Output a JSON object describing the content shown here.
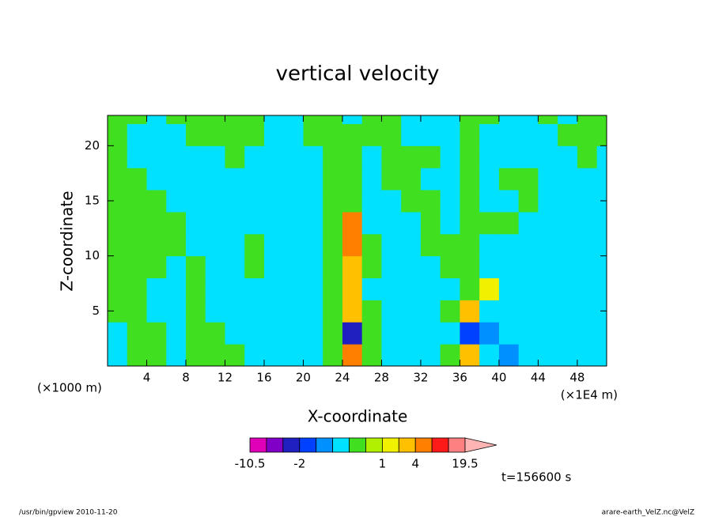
{
  "chart_data": {
    "type": "contour",
    "title": "vertical velocity",
    "x_label": "X-coordinate",
    "y_label": "Z-coordinate",
    "x_unit_left": "(×1000 m)",
    "x_unit_right": "(×1E4 m)",
    "time_label": "t=156600 s",
    "footer_left": "/usr/bin/gpview   2010-11-20",
    "footer_right": "arare-earth_VelZ.nc@VelZ",
    "xlim": [
      0,
      51
    ],
    "ylim": [
      0,
      22.75
    ],
    "xticks": [
      4,
      8,
      12,
      16,
      20,
      24,
      28,
      32,
      36,
      40,
      44,
      48
    ],
    "yticks": [
      5,
      10,
      15,
      20
    ],
    "x": [
      1,
      3,
      5,
      7,
      9,
      11,
      13,
      15,
      17,
      19,
      21,
      23,
      25,
      27,
      29,
      31,
      33,
      35,
      37,
      39,
      41,
      43,
      45,
      47,
      49,
      51
    ],
    "y": [
      1,
      3,
      5,
      7,
      9,
      11,
      13,
      15,
      17,
      19,
      21,
      23
    ],
    "z": [
      [
        -0.3,
        0.3,
        0.3,
        -0.3,
        0.3,
        0.3,
        0.3,
        -0.3,
        -0.3,
        -0.3,
        -0.3,
        0.3,
        4,
        0.3,
        -0.3,
        -0.3,
        -0.3,
        0.3,
        2,
        -0.3,
        -1,
        -0.3,
        -0.3,
        -0.3,
        -0.3,
        -0.3
      ],
      [
        -0.3,
        0.3,
        0.3,
        -0.3,
        0.3,
        0.3,
        -0.3,
        -0.3,
        -0.3,
        -0.3,
        -0.3,
        0.3,
        -2.5,
        0.3,
        -0.3,
        -0.3,
        -0.3,
        -0.3,
        -1.5,
        -1,
        -0.3,
        -0.3,
        -0.3,
        -0.3,
        -0.3,
        -0.3
      ],
      [
        0.3,
        0.3,
        -0.3,
        -0.3,
        0.3,
        -0.3,
        -0.3,
        -0.3,
        -0.3,
        -0.3,
        -0.3,
        0.3,
        3,
        0.3,
        -0.3,
        -0.3,
        -0.3,
        0.3,
        2,
        -0.3,
        -0.3,
        -0.3,
        -0.3,
        -0.3,
        -0.3,
        -0.3
      ],
      [
        0.3,
        0.3,
        -0.3,
        -0.3,
        0.3,
        -0.3,
        -0.3,
        -0.3,
        -0.3,
        -0.3,
        -0.3,
        0.3,
        2,
        -0.3,
        -0.3,
        -0.3,
        -0.3,
        -0.3,
        0.3,
        1,
        -0.3,
        -0.3,
        -0.3,
        -0.3,
        -0.3,
        -0.3
      ],
      [
        0.3,
        0.3,
        0.3,
        -0.3,
        0.3,
        -0.3,
        -0.3,
        0.3,
        -0.3,
        -0.3,
        -0.3,
        0.3,
        3,
        0.3,
        -0.3,
        -0.3,
        -0.3,
        0.3,
        0.3,
        -0.3,
        -0.3,
        -0.3,
        -0.3,
        -0.3,
        -0.3,
        -0.3
      ],
      [
        0.3,
        0.3,
        0.3,
        0.3,
        -0.3,
        -0.3,
        -0.3,
        0.3,
        -0.3,
        -0.3,
        -0.3,
        0.3,
        4,
        0.3,
        -0.3,
        -0.3,
        0.3,
        0.3,
        0.3,
        -0.3,
        -0.3,
        -0.3,
        -0.3,
        -0.3,
        -0.3,
        -0.3
      ],
      [
        0.3,
        0.3,
        0.3,
        0.3,
        -0.3,
        -0.3,
        -0.3,
        -0.3,
        -0.3,
        -0.3,
        -0.3,
        0.3,
        6,
        -0.3,
        -0.3,
        -0.3,
        0.3,
        -0.3,
        0.3,
        0.3,
        0.3,
        -0.3,
        -0.3,
        -0.3,
        -0.3,
        -0.3
      ],
      [
        0.3,
        0.3,
        0.3,
        -0.3,
        -0.3,
        -0.3,
        -0.3,
        -0.3,
        -0.3,
        -0.3,
        -0.3,
        0.3,
        0.3,
        -0.3,
        -0.3,
        0.3,
        0.3,
        -0.3,
        0.3,
        -0.3,
        -0.3,
        0.3,
        -0.3,
        -0.3,
        -0.3,
        -0.3
      ],
      [
        0.3,
        0.3,
        -0.3,
        -0.3,
        -0.3,
        -0.3,
        -0.3,
        -0.3,
        -0.3,
        -0.3,
        -0.3,
        0.3,
        0.3,
        -0.3,
        0.3,
        0.3,
        -0.3,
        -0.3,
        0.3,
        -0.3,
        0.3,
        0.3,
        -0.3,
        -0.3,
        -0.3,
        -0.3
      ],
      [
        0.3,
        -0.3,
        -0.3,
        -0.3,
        -0.3,
        -0.3,
        0.3,
        -0.3,
        -0.3,
        -0.3,
        -0.3,
        0.3,
        0.3,
        -0.3,
        0.3,
        0.3,
        0.3,
        -0.3,
        0.3,
        -0.3,
        -0.3,
        -0.3,
        -0.3,
        -0.3,
        0.3,
        -0.3
      ],
      [
        0.3,
        -0.3,
        -0.3,
        -0.3,
        0.3,
        0.3,
        0.3,
        0.3,
        -0.3,
        -0.3,
        0.3,
        0.3,
        0.3,
        0.3,
        0.3,
        -0.3,
        -0.3,
        -0.3,
        0.3,
        -0.3,
        -0.3,
        -0.3,
        -0.3,
        0.3,
        0.3,
        0.3
      ],
      [
        0.3,
        0.3,
        -0.3,
        0.3,
        0.3,
        0.3,
        0.3,
        0.3,
        -0.3,
        -0.3,
        0.3,
        0.3,
        -0.3,
        0.3,
        0.3,
        -0.3,
        -0.3,
        -0.3,
        0.3,
        0.3,
        -0.3,
        -0.3,
        0.3,
        -0.3,
        0.3,
        0.3
      ]
    ],
    "levels": [
      -10.5,
      -6,
      -3,
      -2,
      -1,
      -0.5,
      0,
      0.5,
      1,
      2,
      4,
      8,
      14,
      19.5
    ],
    "colors": [
      "#e000b8",
      "#8000c8",
      "#2020c0",
      "#0040ff",
      "#0090ff",
      "#00e0ff",
      "#40e020",
      "#b0f000",
      "#f0f000",
      "#ffc000",
      "#ff8000",
      "#ff1a1a",
      "#ff8080",
      "#ffb4b4"
    ],
    "colorbar_ticks": [
      -10.5,
      -2,
      1,
      4,
      19.5
    ]
  }
}
